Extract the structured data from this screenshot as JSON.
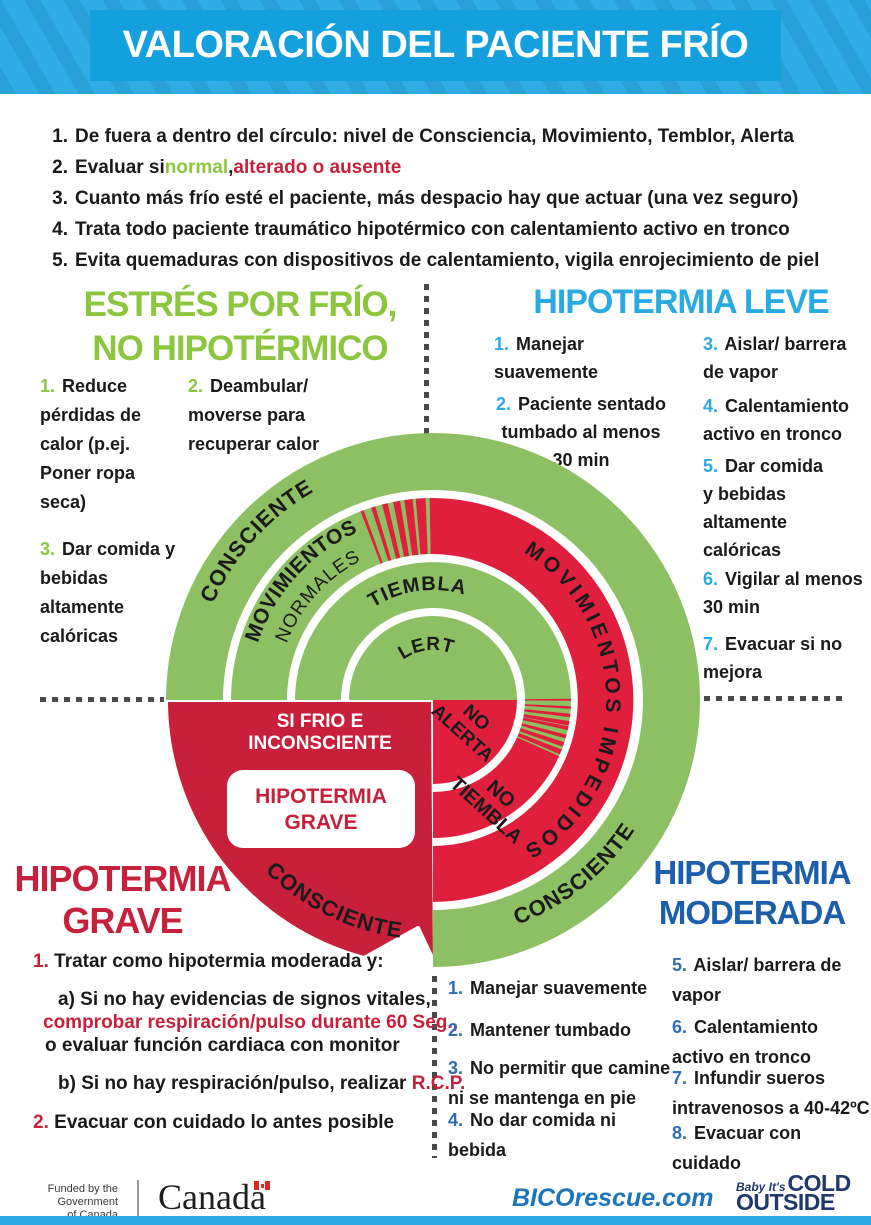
{
  "header": {
    "title": "VALORACIÓN DEL PACIENTE FRÍO"
  },
  "intro": {
    "i1": {
      "num": "1.",
      "text": "De fuera a dentro del círculo: nivel de Consciencia, Movimiento, Temblor, Alerta"
    },
    "i2": {
      "num": "2.",
      "pre": "Evaluar si ",
      "ok": "normal",
      "sep": ", ",
      "bad": "alterado o ausente"
    },
    "i3": {
      "num": "3.",
      "text": "Cuanto más frío esté el paciente, más despacio hay que actuar (una vez seguro)"
    },
    "i4": {
      "num": "4.",
      "text": "Trata todo paciente traumático hipotérmico con calentamiento activo en tronco"
    },
    "i5": {
      "num": "5.",
      "text": "Evita quemaduras con dispositivos de calentamiento, vigila enrojecimiento de piel"
    }
  },
  "cold_stress": {
    "title1": "ESTRÉS POR FRÍO,",
    "title2": "NO HIPOTÉRMICO",
    "i1": {
      "num": "1.",
      "text": "Reduce pérdidas de calor (p.ej. Poner ropa seca)"
    },
    "i2": {
      "num": "2.",
      "text": "Deambular/ moverse para recuperar calor"
    },
    "i3": {
      "num": "3.",
      "text": "Dar comida y bebidas altamente calóricas"
    }
  },
  "mild": {
    "title": "HIPOTERMIA LEVE",
    "i1": {
      "num": "1.",
      "text": "Manejar suavemente"
    },
    "i2": {
      "num": "2.",
      "text": "Paciente sentado tumbado al menos 30 min"
    },
    "i3": {
      "num": "3.",
      "text": "Aislar/ barrera de vapor"
    },
    "i4": {
      "num": "4.",
      "text": "Calentamiento activo en tronco"
    },
    "i5": {
      "num": "5.",
      "text": "Dar comida y bebidas altamente calóricas"
    },
    "i6": {
      "num": "6.",
      "text": "Vigilar al menos 30 min"
    },
    "i7": {
      "num": "7.",
      "text": "Evacuar si no mejora"
    }
  },
  "severe": {
    "title1": "HIPOTERMIA",
    "title2": "GRAVE",
    "i1": {
      "num": "1.",
      "text": "Tratar como hipotermia moderada y:"
    },
    "a1": "a) Si no hay evidencias de signos vitales,",
    "a2": "comprobar respiración/pulso durante 60 Seg.,",
    "a3": "o evaluar  función cardiaca con monitor",
    "b1": "b) Si no hay respiración/pulso, realizar ",
    "b2": "R.C.P.",
    "i2": {
      "num": "2.",
      "text": "Evacuar con cuidado lo antes posible"
    }
  },
  "moderate": {
    "title1": "HIPOTERMIA",
    "title2": "MODERADA",
    "i1": {
      "num": "1.",
      "text": "Manejar suavemente"
    },
    "i2": {
      "num": "2.",
      "text": "Mantener tumbado"
    },
    "i3": {
      "num": "3.",
      "text": "No permitir que camine ni se mantenga en pie"
    },
    "i4": {
      "num": "4.",
      "text": "No dar comida ni bebida"
    },
    "i5": {
      "num": "5.",
      "text": "Aislar/ barrera de vapor"
    },
    "i6": {
      "num": "6.",
      "text": "Calentamiento activo en tronco"
    },
    "i7": {
      "num": "7.",
      "text": "Infundir sueros intravenosos a 40-42ºC"
    },
    "i8": {
      "num": "8.",
      "text": "Evacuar con cuidado"
    }
  },
  "wheel": {
    "consciente_top": "CONSCIENTE",
    "consciente_left": "CONSCIENTE",
    "consciente_bottom": "CONSCIENTE",
    "movimientos": "MOVIMIENTOS",
    "normales": "NORMALES",
    "movimientos_impedidos": "MOVIMIENTOS IMPEDIDOS",
    "tiembla": "TIEMBLA",
    "alerta": "ALERTA",
    "no1": "NO",
    "no_alerta": "ALERTA",
    "no2": "NO",
    "no_tiembla": "TIEMBLA",
    "si_frio1": "SI FRIO E",
    "si_frio2": "INCONSCIENTE",
    "grave_box1": "HIPOTERMIA",
    "grave_box2": "GRAVE"
  },
  "footer": {
    "funded1": "Funded by the",
    "funded2": "Government",
    "funded3": "of Canada",
    "canada": "Canada",
    "site": "BICOrescue.com",
    "baby1": "Baby It's",
    "baby2": "COLD",
    "baby3": "OUTSIDE"
  },
  "colors": {
    "ring_green": "#8dc063",
    "title_green": "#8cc63f",
    "ring_red": "#e01f3d",
    "quadrant_red": "#c81f3a",
    "light_blue": "#29abe2",
    "dark_blue": "#1b5eab",
    "header_blue": "#14a0dd"
  }
}
